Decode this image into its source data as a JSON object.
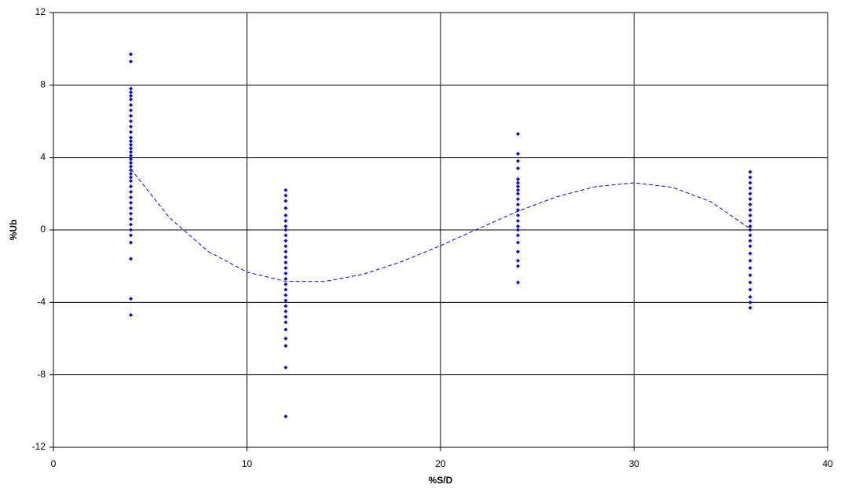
{
  "chart_data": {
    "type": "scatter",
    "x_label": "%S/D",
    "y_label": "%Ub",
    "xlim": [
      0,
      40
    ],
    "xticks": [
      0,
      10,
      20,
      30,
      40
    ],
    "ylim": [
      -12,
      12
    ],
    "yticks": [
      -12,
      -8,
      -4,
      0,
      4,
      8,
      12
    ],
    "grid": true,
    "series": [
      {
        "color": "#0000ff",
        "x": [
          4,
          4,
          4,
          4,
          4,
          4,
          4,
          4,
          4,
          4,
          4,
          4,
          4,
          4,
          4,
          4,
          4,
          4,
          4,
          4,
          4,
          4,
          4,
          4,
          4,
          4,
          4,
          4,
          4,
          4,
          4,
          4,
          4,
          4,
          4,
          4,
          4,
          4,
          4
        ],
        "values": [
          9.7,
          9.3,
          7.8,
          7.6,
          7.4,
          7.2,
          6.9,
          6.6,
          6.3,
          6.0,
          5.7,
          5.4,
          5.1,
          4.9,
          4.7,
          4.5,
          4.3,
          4.1,
          3.9,
          3.7,
          3.5,
          3.3,
          3.1,
          2.9,
          2.7,
          2.4,
          2.1,
          1.8,
          1.5,
          1.2,
          0.9,
          0.6,
          0.3,
          0,
          -0.3,
          -0.7,
          -1.6,
          -3.8,
          -4.7
        ]
      },
      {
        "color": "#0000ff",
        "x": [
          12,
          12,
          12,
          12,
          12,
          12,
          12,
          12,
          12,
          12,
          12,
          12,
          12,
          12,
          12,
          12,
          12,
          12,
          12,
          12,
          12,
          12,
          12,
          12,
          12,
          12,
          12,
          12,
          12,
          12
        ],
        "values": [
          2.2,
          1.9,
          1.6,
          1.2,
          0.8,
          0.5,
          0.2,
          0,
          -0.3,
          -0.6,
          -0.9,
          -1.2,
          -1.5,
          -1.8,
          -2.1,
          -2.4,
          -2.7,
          -3.0,
          -3.3,
          -3.6,
          -3.9,
          -4.2,
          -4.5,
          -4.8,
          -5.1,
          -5.5,
          -6.0,
          -6.4,
          -7.6,
          -10.3
        ]
      },
      {
        "color": "#0000ff",
        "x": [
          24,
          24,
          24,
          24,
          24,
          24,
          24,
          24,
          24,
          24,
          24,
          24,
          24,
          24,
          24,
          24,
          24,
          24,
          24,
          24,
          24,
          24
        ],
        "values": [
          5.3,
          4.2,
          3.8,
          3.4,
          2.8,
          2.6,
          2.4,
          2.2,
          2.0,
          1.7,
          1.4,
          1.1,
          0.8,
          0.5,
          0.2,
          0,
          -0.3,
          -0.7,
          -1.2,
          -1.7,
          -2.0,
          -2.9
        ]
      },
      {
        "color": "#0000ff",
        "x": [
          36,
          36,
          36,
          36,
          36,
          36,
          36,
          36,
          36,
          36,
          36,
          36,
          36,
          36,
          36,
          36,
          36,
          36,
          36,
          36,
          36,
          36,
          36,
          36
        ],
        "values": [
          3.2,
          2.9,
          2.6,
          2.3,
          2.0,
          1.7,
          1.4,
          1.1,
          0.8,
          0.5,
          0.2,
          0,
          -0.3,
          -0.6,
          -0.9,
          -1.3,
          -1.7,
          -2.1,
          -2.5,
          -2.9,
          -3.3,
          -3.7,
          -4.0,
          -4.3
        ]
      },
      {
        "type": "line",
        "dashed": true,
        "color": "#0000ff",
        "x": [
          4,
          6,
          8,
          10,
          12,
          14,
          16,
          18,
          20,
          22,
          24,
          26,
          28,
          30,
          32,
          34,
          36
        ],
        "values": [
          3.36,
          0.67,
          -1.19,
          -2.33,
          -2.84,
          -2.85,
          -2.45,
          -1.75,
          -0.87,
          0.09,
          1.03,
          1.83,
          2.39,
          2.6,
          2.35,
          1.54,
          0.06
        ]
      }
    ]
  }
}
